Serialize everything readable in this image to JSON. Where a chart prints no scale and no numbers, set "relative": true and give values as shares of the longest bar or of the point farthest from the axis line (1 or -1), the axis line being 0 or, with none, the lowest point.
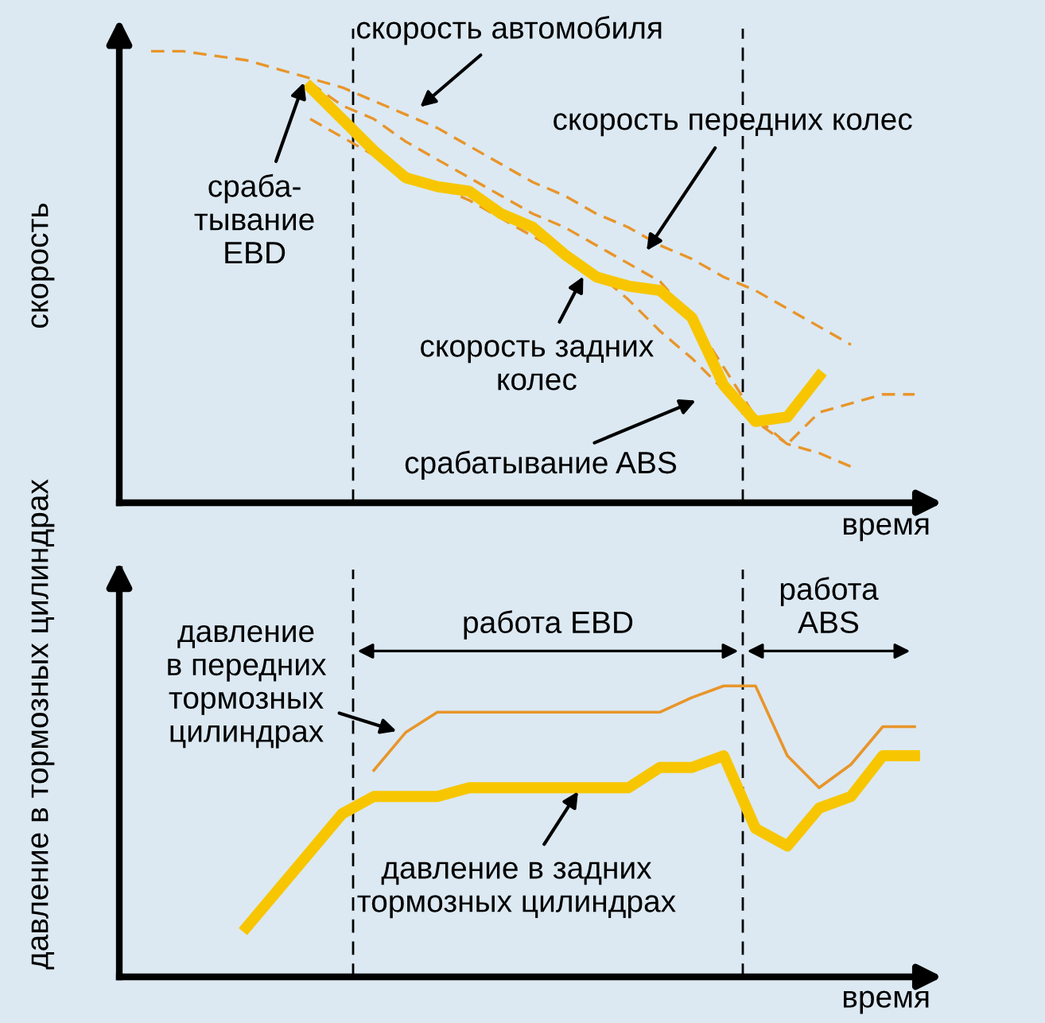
{
  "chart_data": [
    {
      "type": "line",
      "relative": true,
      "ylabel": "скорость",
      "xlabel": "время",
      "ylim": [
        0,
        1.05
      ],
      "categories": [
        null,
        null,
        null,
        null,
        null,
        null,
        null,
        null,
        null,
        null,
        null,
        null,
        null,
        null,
        null,
        null,
        null,
        null,
        null,
        null,
        null,
        null,
        null,
        null,
        null,
        null
      ],
      "series": [
        {
          "color": "#e8952a",
          "line_style": "dashed",
          "values": [
            null,
            1.0,
            1.0,
            0.99,
            0.98,
            0.96,
            0.94,
            0.92,
            0.89,
            0.86,
            0.83,
            0.79,
            0.75,
            0.71,
            0.68,
            0.64,
            0.61,
            0.57,
            0.54,
            0.5,
            0.47,
            0.43,
            0.39,
            0.35,
            null,
            null
          ]
        },
        {
          "color": "#e8952a",
          "line_style": "dashed",
          "values": [
            null,
            null,
            null,
            null,
            null,
            null,
            0.93,
            0.88,
            0.85,
            0.8,
            0.76,
            0.72,
            0.68,
            0.64,
            0.61,
            0.57,
            0.53,
            0.49,
            0.41,
            0.3,
            0.19,
            0.13,
            0.2,
            0.22,
            0.24,
            0.24
          ]
        },
        {
          "color": "#e8952a",
          "line_style": "dashed",
          "values": [
            null,
            null,
            null,
            null,
            null,
            null,
            0.85,
            0.81,
            0.77,
            0.73,
            0.7,
            0.67,
            0.63,
            0.59,
            0.55,
            0.51,
            0.45,
            0.38,
            0.32,
            0.25,
            0.18,
            0.13,
            0.11,
            0.08,
            null,
            null
          ]
        },
        {
          "color": "#f7c600",
          "line_style": "solid",
          "values": [
            null,
            null,
            null,
            null,
            null,
            null,
            0.92,
            0.85,
            0.78,
            0.72,
            0.7,
            0.69,
            0.64,
            0.61,
            0.55,
            0.5,
            0.48,
            0.47,
            0.41,
            0.26,
            0.18,
            0.19,
            0.28,
            null,
            null,
            null
          ]
        }
      ],
      "annotations": [
        "скорость автомобиля",
        "сраба-\nтывание\nEBD",
        "скорость передних колес",
        "скорость задних\nколес",
        "срабатывание ABS"
      ]
    },
    {
      "type": "line",
      "relative": true,
      "ylabel": "давление в тормозных цилиндрах",
      "xlabel": "время",
      "ylim": [
        0,
        1.4
      ],
      "categories": [
        null,
        null,
        null,
        null,
        null,
        null,
        null,
        null,
        null,
        null,
        null,
        null,
        null,
        null,
        null,
        null,
        null,
        null,
        null,
        null,
        null,
        null,
        null,
        null,
        null,
        null
      ],
      "series": [
        {
          "color": "#e8952a",
          "line_style": "solid",
          "values": [
            null,
            null,
            null,
            null,
            null,
            null,
            null,
            null,
            0.71,
            0.84,
            0.91,
            0.91,
            0.91,
            0.91,
            0.91,
            0.91,
            0.91,
            0.91,
            0.96,
            1.0,
            1.0,
            0.76,
            0.65,
            0.73,
            0.86,
            0.86
          ]
        },
        {
          "color": "#f7c600",
          "line_style": "solid",
          "values": [
            null,
            null,
            null,
            null,
            0.17,
            0.3,
            0.43,
            0.56,
            0.62,
            0.62,
            0.62,
            0.65,
            0.65,
            0.65,
            0.65,
            0.65,
            0.65,
            0.72,
            0.72,
            0.76,
            0.51,
            0.45,
            0.58,
            0.62,
            0.76,
            0.76
          ]
        }
      ],
      "annotations": [
        "давление\nв передних\nтормозных\nцилиндрах",
        "давление в задних\nтормозных цилиндрах",
        "работа EBD",
        "работа\nABS"
      ]
    }
  ]
}
